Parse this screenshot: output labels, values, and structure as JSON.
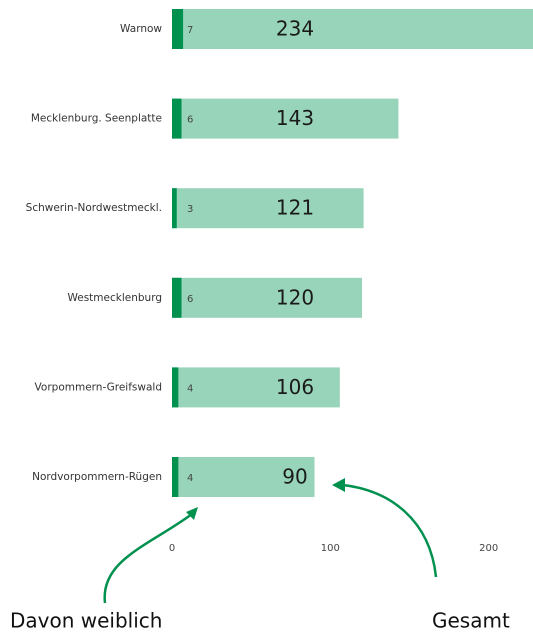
{
  "chart_data": {
    "type": "bar",
    "orientation": "horizontal",
    "categories": [
      "Warnow",
      "Mecklenburg. Seenplatte",
      "Schwerin-Nordwestmeckl.",
      "Westmecklenburg",
      "Vorpommern-Greifswald",
      "Nordvorpommern-Rügen"
    ],
    "series": [
      {
        "name": "Gesamt",
        "color": "#98d4b9",
        "values": [
          234,
          143,
          121,
          120,
          106,
          90
        ]
      },
      {
        "name": "Davon weiblich",
        "color": "#00914f",
        "values": [
          7,
          6,
          3,
          6,
          4,
          4
        ]
      }
    ],
    "xlim": [
      0,
      228
    ],
    "xticks": [
      0,
      100,
      200
    ]
  }
}
